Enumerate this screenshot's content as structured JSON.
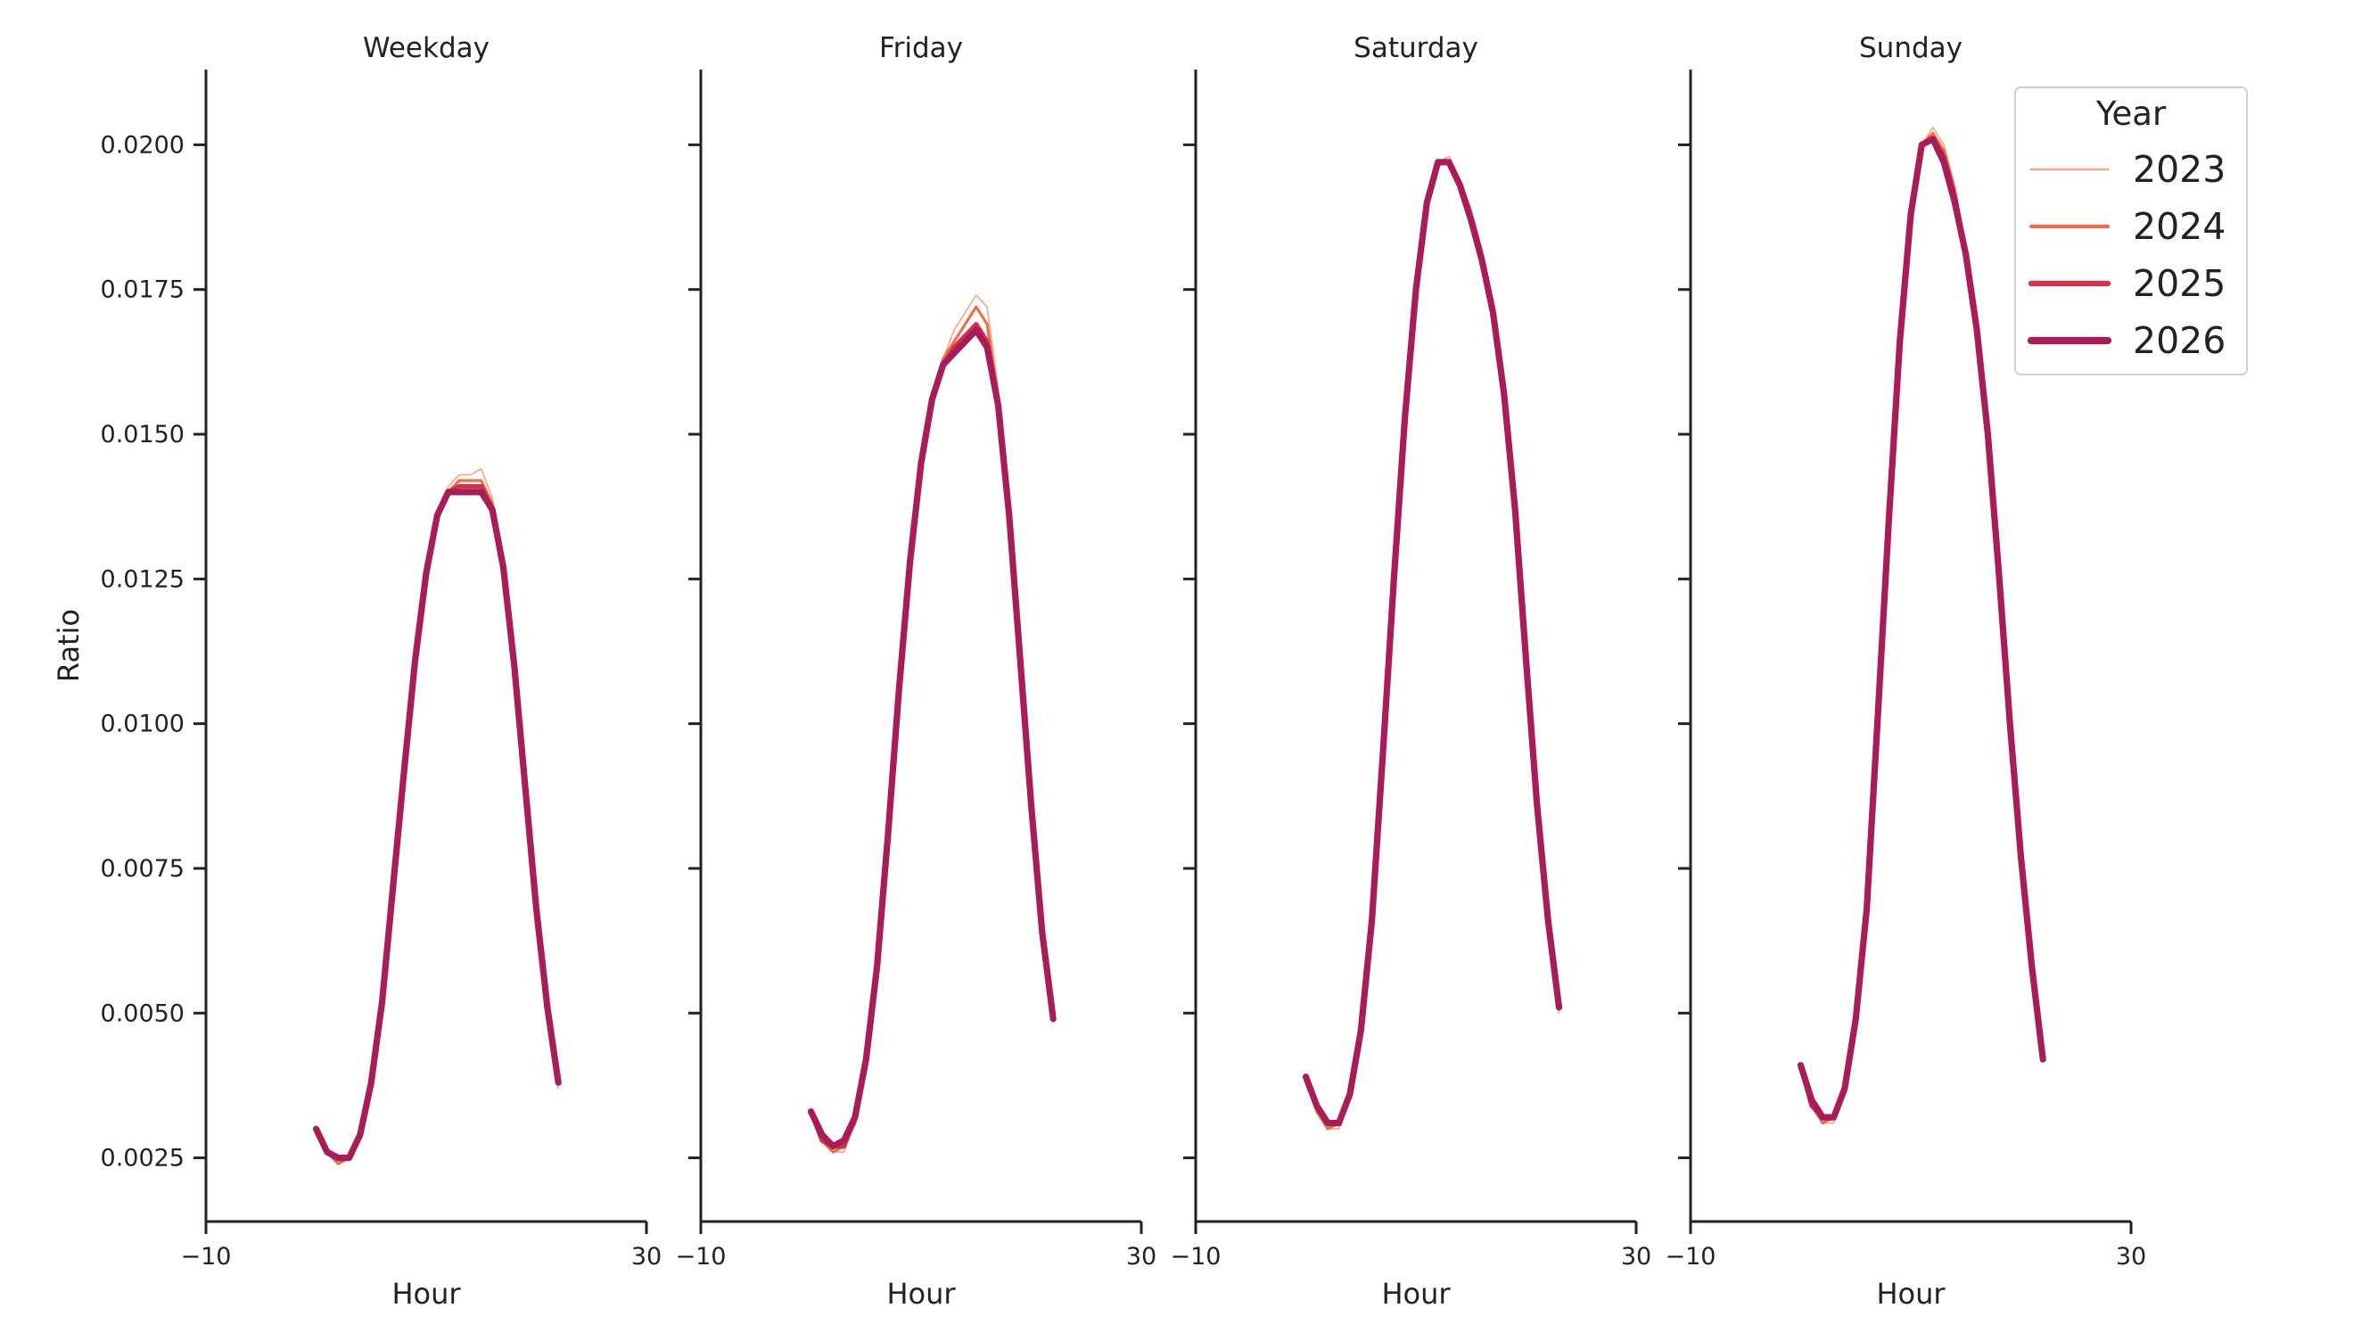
{
  "chart_data": {
    "type": "line",
    "ylabel": "Ratio",
    "xlabel": "Hour",
    "xlim": [
      -10,
      30
    ],
    "ylim": [
      0.0014,
      0.0213
    ],
    "yticks": [
      0.0025,
      0.005,
      0.0075,
      0.01,
      0.0125,
      0.015,
      0.0175,
      0.02
    ],
    "ytick_labels": [
      "0.0025",
      "0.0050",
      "0.0075",
      "0.0100",
      "0.0125",
      "0.0150",
      "0.0175",
      "0.0200"
    ],
    "xticks": [
      -10,
      30
    ],
    "xtick_labels": [
      "−10",
      "30"
    ],
    "grid": false,
    "legend": {
      "title": "Year",
      "placement": "top-right",
      "entries": [
        "2023",
        "2024",
        "2025",
        "2026"
      ]
    },
    "series_styles": [
      {
        "name": "2023",
        "color": "#f4a582"
      },
      {
        "name": "2024",
        "color": "#e8704d"
      },
      {
        "name": "2025",
        "color": "#d1334a"
      },
      {
        "name": "2026",
        "color": "#a81c5a"
      }
    ],
    "x": [
      0,
      1,
      2,
      3,
      4,
      5,
      6,
      7,
      8,
      9,
      10,
      11,
      12,
      13,
      14,
      15,
      16,
      17,
      18,
      19,
      20,
      21,
      22,
      23
    ],
    "panels": [
      {
        "title": "Weekday",
        "series": [
          {
            "name": "2023",
            "values": [
              0.003,
              0.0026,
              0.0024,
              0.0025,
              0.0029,
              0.0038,
              0.0052,
              0.0072,
              0.0092,
              0.0111,
              0.0126,
              0.0136,
              0.0141,
              0.0143,
              0.0143,
              0.0144,
              0.0139,
              0.0128,
              0.011,
              0.0089,
              0.0067,
              0.005,
              0.0037,
              null
            ]
          },
          {
            "name": "2024",
            "values": [
              0.003,
              0.0026,
              0.0024,
              0.0025,
              0.0029,
              0.0038,
              0.0052,
              0.0072,
              0.0092,
              0.0111,
              0.0126,
              0.0136,
              0.014,
              0.0142,
              0.0142,
              0.0142,
              0.0138,
              0.0128,
              0.011,
              0.0089,
              0.0068,
              0.0051,
              0.0038,
              null
            ]
          },
          {
            "name": "2025",
            "values": [
              0.003,
              0.0026,
              0.0025,
              0.0025,
              0.0029,
              0.0038,
              0.0052,
              0.0072,
              0.0092,
              0.0111,
              0.0126,
              0.0136,
              0.014,
              0.0141,
              0.0141,
              0.0141,
              0.0137,
              0.0127,
              0.011,
              0.0089,
              0.0068,
              0.0051,
              0.0038,
              null
            ]
          },
          {
            "name": "2026",
            "values": [
              0.003,
              0.0026,
              0.0025,
              0.0025,
              0.0029,
              0.0038,
              0.0052,
              0.0072,
              0.0092,
              0.0111,
              0.0126,
              0.0136,
              0.014,
              0.014,
              0.014,
              0.014,
              0.0137,
              0.0127,
              0.011,
              0.0089,
              0.0068,
              0.0051,
              0.0038,
              null
            ]
          }
        ]
      },
      {
        "title": "Friday",
        "series": [
          {
            "name": "2023",
            "values": [
              0.0033,
              0.0028,
              0.0026,
              0.0026,
              0.0031,
              0.0041,
              0.0058,
              0.0081,
              0.0106,
              0.0128,
              0.0145,
              0.0156,
              0.0163,
              0.0168,
              0.0171,
              0.0174,
              0.0172,
              0.0158,
              0.0138,
              0.0113,
              0.0087,
              0.0065,
              0.0049,
              null
            ]
          },
          {
            "name": "2024",
            "values": [
              0.0033,
              0.0028,
              0.0026,
              0.0027,
              0.0031,
              0.0041,
              0.0058,
              0.0081,
              0.0106,
              0.0128,
              0.0145,
              0.0156,
              0.0163,
              0.0166,
              0.0169,
              0.0172,
              0.0169,
              0.0156,
              0.0137,
              0.0112,
              0.0086,
              0.0064,
              0.0049,
              null
            ]
          },
          {
            "name": "2025",
            "values": [
              0.0033,
              0.0028,
              0.0027,
              0.0027,
              0.0032,
              0.0042,
              0.0058,
              0.0081,
              0.0106,
              0.0128,
              0.0145,
              0.0156,
              0.0162,
              0.0165,
              0.0167,
              0.0169,
              0.0166,
              0.0155,
              0.0136,
              0.0111,
              0.0086,
              0.0064,
              0.0049,
              null
            ]
          },
          {
            "name": "2026",
            "values": [
              0.0033,
              0.0029,
              0.0027,
              0.0028,
              0.0032,
              0.0042,
              0.0058,
              0.0081,
              0.0106,
              0.0128,
              0.0145,
              0.0156,
              0.0162,
              0.0164,
              0.0166,
              0.0168,
              0.0165,
              0.0155,
              0.0136,
              0.0111,
              0.0086,
              0.0064,
              0.0049,
              null
            ]
          }
        ]
      },
      {
        "title": "Saturday",
        "series": [
          {
            "name": "2023",
            "values": [
              0.0039,
              0.0033,
              0.003,
              0.003,
              0.0035,
              0.0047,
              0.0066,
              0.0095,
              0.0125,
              0.0153,
              0.0175,
              0.019,
              0.0197,
              0.0198,
              0.0194,
              0.0189,
              0.0182,
              0.0173,
              0.0158,
              0.0137,
              0.0111,
              0.0086,
              0.0066,
              0.005
            ]
          },
          {
            "name": "2024",
            "values": [
              0.0039,
              0.0033,
              0.003,
              0.0031,
              0.0036,
              0.0047,
              0.0066,
              0.0095,
              0.0125,
              0.0153,
              0.0175,
              0.019,
              0.0197,
              0.0197,
              0.0193,
              0.0187,
              0.0181,
              0.0172,
              0.0157,
              0.0137,
              0.0111,
              0.0086,
              0.0066,
              0.0051
            ]
          },
          {
            "name": "2025",
            "values": [
              0.0039,
              0.0034,
              0.0031,
              0.0031,
              0.0036,
              0.0047,
              0.0066,
              0.0095,
              0.0125,
              0.0153,
              0.0175,
              0.019,
              0.0197,
              0.0197,
              0.0193,
              0.0187,
              0.018,
              0.0171,
              0.0157,
              0.0137,
              0.0111,
              0.0086,
              0.0066,
              0.0051
            ]
          },
          {
            "name": "2026",
            "values": [
              0.0039,
              0.0034,
              0.0031,
              0.0031,
              0.0036,
              0.0047,
              0.0066,
              0.0095,
              0.0125,
              0.0153,
              0.0175,
              0.019,
              0.0197,
              0.0197,
              0.0193,
              0.0187,
              0.018,
              0.0171,
              0.0157,
              0.0137,
              0.0111,
              0.0086,
              0.0066,
              0.0051
            ]
          }
        ]
      },
      {
        "title": "Sunday",
        "series": [
          {
            "name": "2023",
            "values": [
              0.0041,
              0.0034,
              0.0031,
              0.0031,
              0.0036,
              0.0048,
              0.0068,
              0.0101,
              0.0135,
              0.0166,
              0.0188,
              0.02,
              0.0203,
              0.02,
              0.0193,
              0.0182,
              0.0168,
              0.015,
              0.0126,
              0.01,
              0.0077,
              0.0057,
              0.0042,
              null
            ]
          },
          {
            "name": "2024",
            "values": [
              0.0041,
              0.0034,
              0.0031,
              0.0032,
              0.0037,
              0.0049,
              0.0068,
              0.0101,
              0.0135,
              0.0166,
              0.0188,
              0.02,
              0.0202,
              0.0199,
              0.0192,
              0.0182,
              0.0168,
              0.015,
              0.0126,
              0.01,
              0.0077,
              0.0057,
              0.0042,
              null
            ]
          },
          {
            "name": "2025",
            "values": [
              0.0041,
              0.0034,
              0.0032,
              0.0032,
              0.0037,
              0.0049,
              0.0068,
              0.0101,
              0.0135,
              0.0166,
              0.0188,
              0.02,
              0.0201,
              0.0198,
              0.0191,
              0.0181,
              0.0168,
              0.015,
              0.0126,
              0.01,
              0.0077,
              0.0058,
              0.0042,
              null
            ]
          },
          {
            "name": "2026",
            "values": [
              0.0041,
              0.0035,
              0.0032,
              0.0032,
              0.0037,
              0.0049,
              0.0068,
              0.0101,
              0.0135,
              0.0166,
              0.0188,
              0.02,
              0.0201,
              0.0197,
              0.019,
              0.0181,
              0.0168,
              0.015,
              0.0126,
              0.01,
              0.0077,
              0.0058,
              0.0042,
              null
            ]
          }
        ]
      }
    ]
  }
}
